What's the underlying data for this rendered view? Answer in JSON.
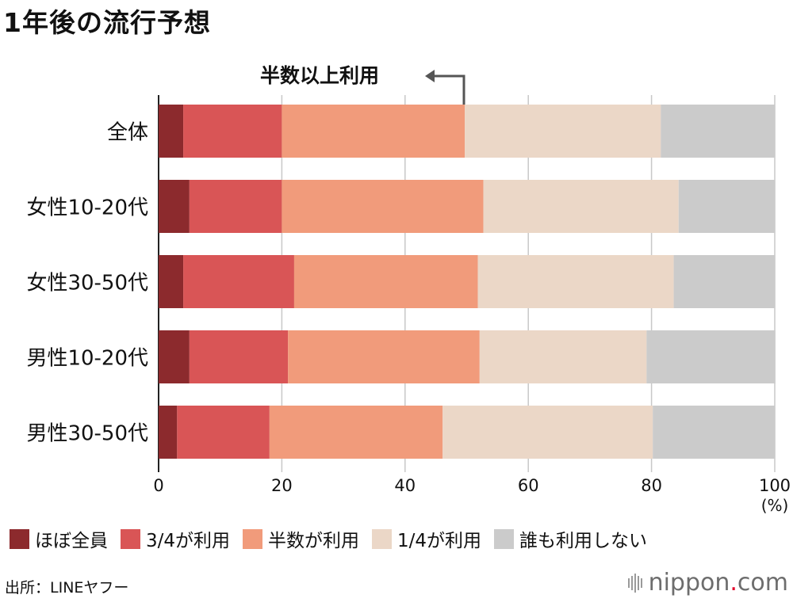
{
  "title": "1年後の流行予想",
  "annotation": "半数以上利用",
  "chart_data": {
    "type": "bar",
    "orientation": "horizontal",
    "stacked": true,
    "categories": [
      "全体",
      "女性10-20代",
      "女性30-50代",
      "男性10-20代",
      "男性30-50代"
    ],
    "series": [
      {
        "name": "ほぼ全員",
        "color": "#8c2a2d",
        "values": [
          4,
          5,
          4,
          5,
          3
        ]
      },
      {
        "name": "3/4が利用",
        "color": "#d95556",
        "values": [
          16,
          15,
          18,
          16,
          15
        ]
      },
      {
        "name": "半数が利用",
        "color": "#f19b7b",
        "values": [
          29.7,
          32.7,
          29.8,
          31.1,
          28.1
        ]
      },
      {
        "name": "1/4が利用",
        "color": "#ebd7c7",
        "values": [
          31.8,
          31.7,
          31.8,
          27.1,
          34.1
        ]
      },
      {
        "name": "誰も利用しない",
        "color": "#cbcbcb",
        "values": [
          18.5,
          15.6,
          16.4,
          20.9,
          19.8
        ]
      }
    ],
    "xlim": [
      0,
      100
    ],
    "xticks": [
      "0",
      "20",
      "40",
      "60",
      "80",
      "100"
    ],
    "xunit": "(%)",
    "grid": true,
    "legend": "bottom"
  },
  "source": "出所：LINEヤフー",
  "logo": {
    "name": "nippon",
    "dot": ".",
    "tld": "com"
  }
}
